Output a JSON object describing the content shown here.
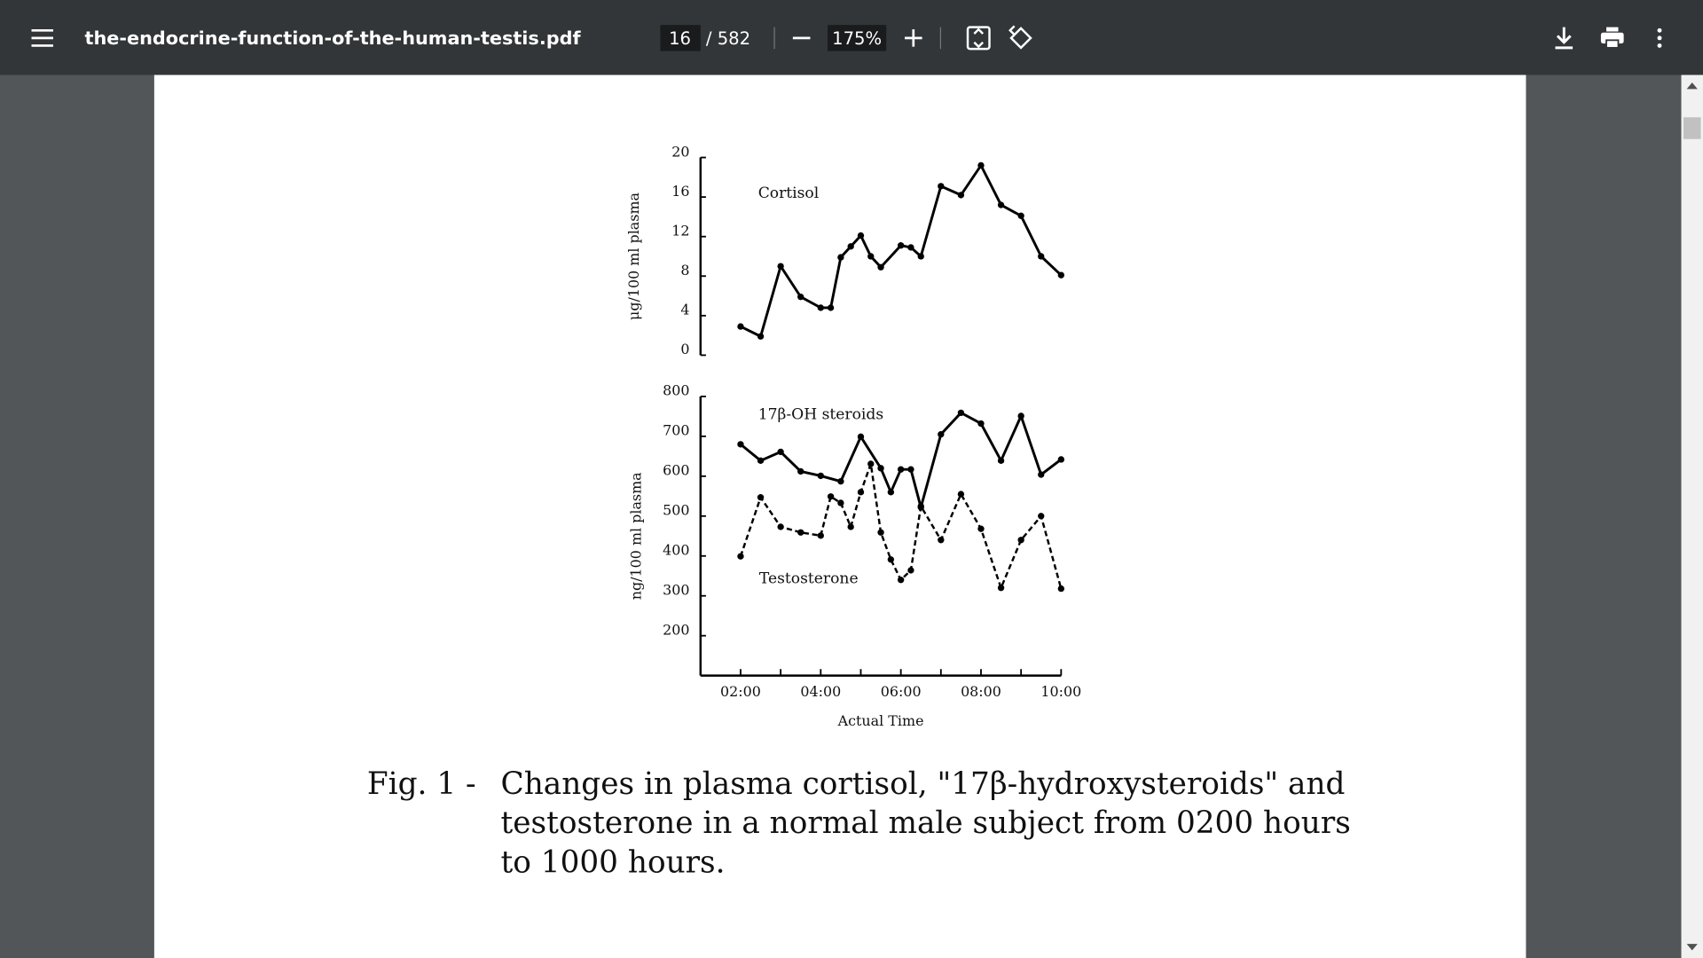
{
  "toolbar": {
    "filename": "the-endocrine-function-of-the-human-testis.pdf",
    "page": "16",
    "page_total": "/ 582",
    "zoom": "175%"
  },
  "chart_data": [
    {
      "type": "line",
      "y_label": "μg/100 ml plasma",
      "xlim": [
        1,
        10
      ],
      "ylim": [
        0,
        20
      ],
      "yticks": [
        0,
        4,
        8,
        12,
        16,
        20
      ],
      "series": [
        {
          "name": "Cortisol",
          "color": "#000000",
          "style": "solid",
          "x": [
            2,
            2.5,
            3,
            3.5,
            4,
            4.25,
            4.5,
            4.75,
            5,
            5.25,
            5.5,
            6,
            6.25,
            6.5,
            7,
            7.5,
            8,
            8.5,
            9,
            9.5,
            10
          ],
          "values": [
            2.9,
            1.9,
            9.0,
            5.9,
            4.8,
            4.8,
            9.9,
            11.0,
            12.1,
            10.0,
            8.9,
            11.1,
            10.9,
            10.0,
            17.1,
            16.2,
            19.2,
            15.2,
            14.1,
            10.0,
            8.1
          ]
        }
      ]
    },
    {
      "type": "line",
      "y_label": "ng/100 ml plasma",
      "x_label": "Actual Time",
      "xlim": [
        1,
        10
      ],
      "ylim": [
        100,
        800
      ],
      "yticks": [
        200,
        300,
        400,
        500,
        600,
        700,
        800
      ],
      "xticks": [
        {
          "value": 2,
          "label": "02:00"
        },
        {
          "value": 4,
          "label": "04:00"
        },
        {
          "value": 6,
          "label": "06:00"
        },
        {
          "value": 8,
          "label": "08:00"
        },
        {
          "value": 10,
          "label": "10:00"
        }
      ],
      "xminor": [
        3,
        5,
        7,
        9
      ],
      "series": [
        {
          "name": "17β-OH steroids",
          "color": "#000000",
          "style": "solid",
          "x": [
            2,
            2.5,
            3,
            3.5,
            4,
            4.5,
            5,
            5.5,
            5.75,
            6,
            6.25,
            6.5,
            7,
            7.5,
            8,
            8.5,
            9,
            9.5,
            10
          ],
          "values": [
            680,
            639,
            661,
            612,
            601,
            587,
            699,
            620,
            560,
            617,
            617,
            522,
            705,
            759,
            732,
            639,
            751,
            604,
            642
          ]
        },
        {
          "name": "Testosterone",
          "color": "#000000",
          "style": "dashed",
          "x": [
            2,
            2.5,
            3,
            3.5,
            4,
            4.25,
            4.5,
            4.75,
            5,
            5.25,
            5.5,
            5.75,
            6,
            6.25,
            6.5,
            7,
            7.5,
            8,
            8.5,
            9,
            9.5,
            10
          ],
          "values": [
            399,
            547,
            473,
            459,
            451,
            549,
            533,
            473,
            560,
            631,
            459,
            391,
            340,
            364,
            525,
            440,
            555,
            468,
            320,
            440,
            500,
            318
          ]
        }
      ]
    }
  ],
  "figure": {
    "caption_label": "Fig. 1 -",
    "caption_lines": [
      "Changes in plasma cortisol, \"17β-hydroxysteroids\" and",
      "testosterone in a normal male subject from 0200 hours",
      "to 1000 hours."
    ]
  }
}
